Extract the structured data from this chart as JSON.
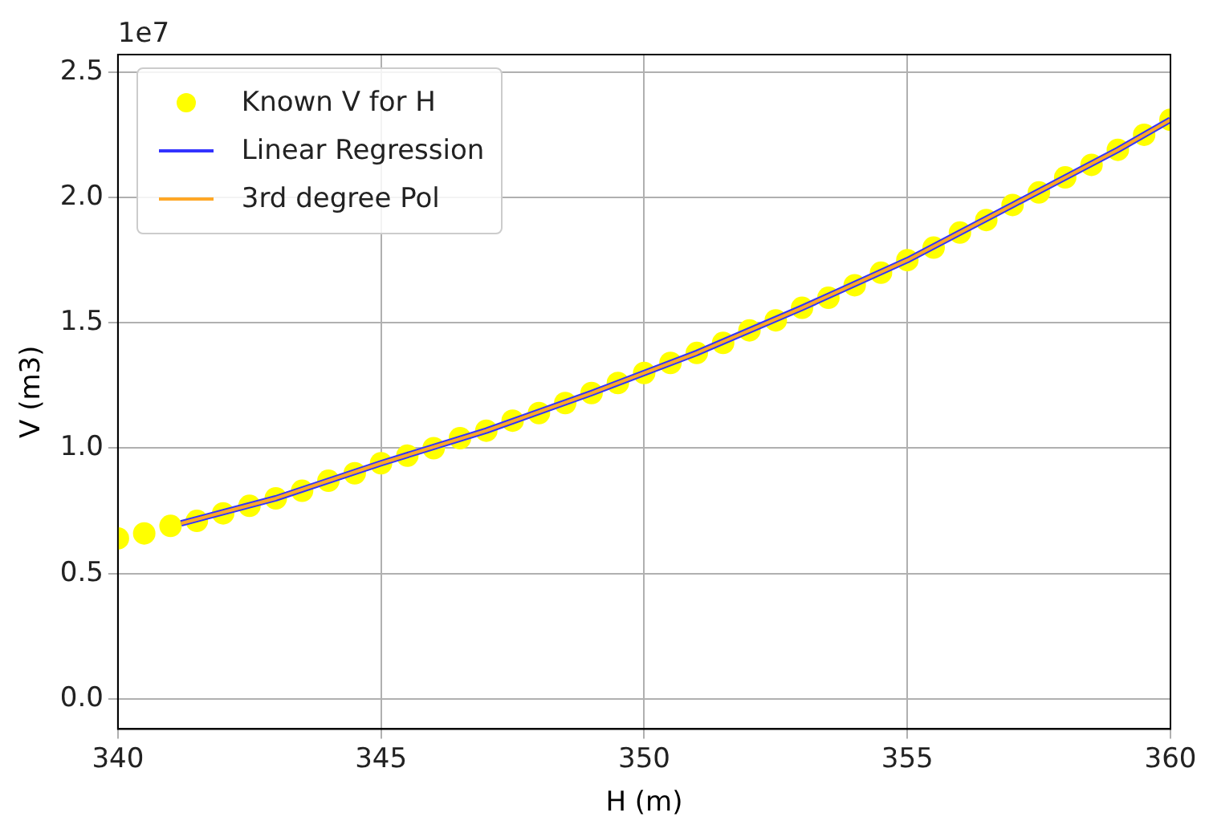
{
  "chart_data": {
    "type": "scatter",
    "xlabel": "H (m)",
    "ylabel": "V (m3)",
    "annotations": [
      "1e7"
    ],
    "xlim": [
      340,
      360
    ],
    "xticks": [
      340,
      345,
      350,
      355,
      360
    ],
    "ylim": [
      -0.12,
      2.57
    ],
    "yticks": [
      {
        "value": 0,
        "label": "0.0"
      },
      0.5,
      {
        "value": 1,
        "label": "1.0"
      },
      1.5,
      {
        "value": 2,
        "label": "2.0"
      },
      2.5
    ],
    "grid": true,
    "legend": "top left",
    "series": [
      {
        "name": "Known V for H",
        "color": "#ffff00",
        "marker": "circle",
        "x": [
          340,
          340.5,
          341,
          341.5,
          342,
          342.5,
          343,
          343.5,
          344,
          344.5,
          345,
          345.5,
          346,
          346.5,
          347,
          347.5,
          348,
          348.5,
          349,
          349.5,
          350,
          350.5,
          351,
          351.5,
          352,
          352.5,
          353,
          353.5,
          354,
          354.5,
          355,
          355.5,
          356,
          356.5,
          357,
          357.5,
          358,
          358.5,
          359,
          359.5,
          360
        ],
        "values": [
          0.64,
          0.66,
          0.69,
          0.71,
          0.74,
          0.77,
          0.8,
          0.83,
          0.87,
          0.9,
          0.94,
          0.97,
          1.0,
          1.04,
          1.07,
          1.11,
          1.14,
          1.18,
          1.22,
          1.26,
          1.3,
          1.34,
          1.38,
          1.42,
          1.47,
          1.51,
          1.56,
          1.6,
          1.65,
          1.7,
          1.75,
          1.8,
          1.86,
          1.91,
          1.97,
          2.02,
          2.08,
          2.13,
          2.19,
          2.25,
          2.31
        ]
      },
      {
        "name": "Linear Regression",
        "type": "line",
        "color": "#3333ff",
        "marker": "none",
        "x": [
          341.2,
          343,
          345,
          347,
          349,
          351,
          353,
          355,
          357,
          359,
          360
        ],
        "values": [
          0.7,
          0.8,
          0.94,
          1.07,
          1.22,
          1.38,
          1.56,
          1.75,
          1.97,
          2.19,
          2.31
        ]
      },
      {
        "name": "3rd degree Pol",
        "type": "line",
        "color": "#ffa726",
        "marker": "none",
        "x": [
          341.2,
          343,
          345,
          347,
          349,
          351,
          353,
          355,
          357,
          359,
          360
        ],
        "values": [
          0.7,
          0.8,
          0.94,
          1.07,
          1.22,
          1.38,
          1.56,
          1.75,
          1.97,
          2.19,
          2.31
        ]
      }
    ]
  }
}
